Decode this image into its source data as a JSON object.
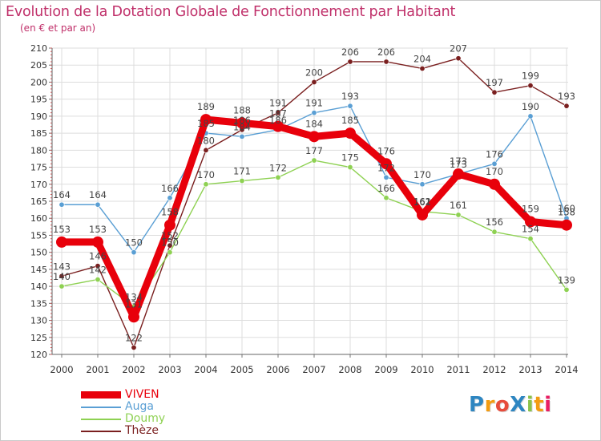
{
  "header": {
    "title": "Evolution de la Dotation Globale de Fonctionnement par Habitant",
    "subtitle": "(en € et par an)"
  },
  "brand": {
    "logo_text": "ProXiti",
    "letters": [
      "P",
      "r",
      "o",
      "X",
      "i",
      "t",
      "i"
    ],
    "letter_colors": [
      "#2e86c1",
      "#f39c12",
      "#e74c3c",
      "#2e86c1",
      "#8bc34a",
      "#f39c12",
      "#e91e63"
    ]
  },
  "chart_data": {
    "type": "line",
    "title": "Evolution de la Dotation Globale de Fonctionnement par Habitant",
    "subtitle": "(en € et par an)",
    "xlabel": "",
    "ylabel": "",
    "x": [
      "2000",
      "2001",
      "2002",
      "2003",
      "2004",
      "2005",
      "2006",
      "2007",
      "2008",
      "2009",
      "2010",
      "2011",
      "2012",
      "2013",
      "2014"
    ],
    "ylim": [
      120,
      210
    ],
    "yticks": [
      120,
      125,
      130,
      135,
      140,
      145,
      150,
      155,
      160,
      165,
      170,
      175,
      180,
      185,
      190,
      195,
      200,
      205,
      210
    ],
    "grid": true,
    "legend_position": "bottom-left",
    "series": [
      {
        "name": "VIVEN",
        "color": "#e8000b",
        "values": [
          153,
          153,
          131,
          158,
          189,
          188,
          187,
          184,
          185,
          176,
          161,
          173,
          170,
          159,
          158
        ]
      },
      {
        "name": "Auga",
        "color": "#5a9fd4",
        "values": [
          164,
          164,
          150,
          166,
          185,
          184,
          186,
          191,
          193,
          172,
          170,
          173,
          176,
          190,
          160
        ]
      },
      {
        "name": "Doumy",
        "color": "#8ed152",
        "values": [
          140,
          142,
          134,
          150,
          170,
          171,
          172,
          177,
          175,
          166,
          162,
          161,
          156,
          154,
          139
        ]
      },
      {
        "name": "Thèze",
        "color": "#7a1f1f",
        "values": [
          143,
          146,
          122,
          152,
          180,
          186,
          191,
          200,
          206,
          206,
          204,
          207,
          197,
          199,
          193
        ]
      }
    ]
  }
}
